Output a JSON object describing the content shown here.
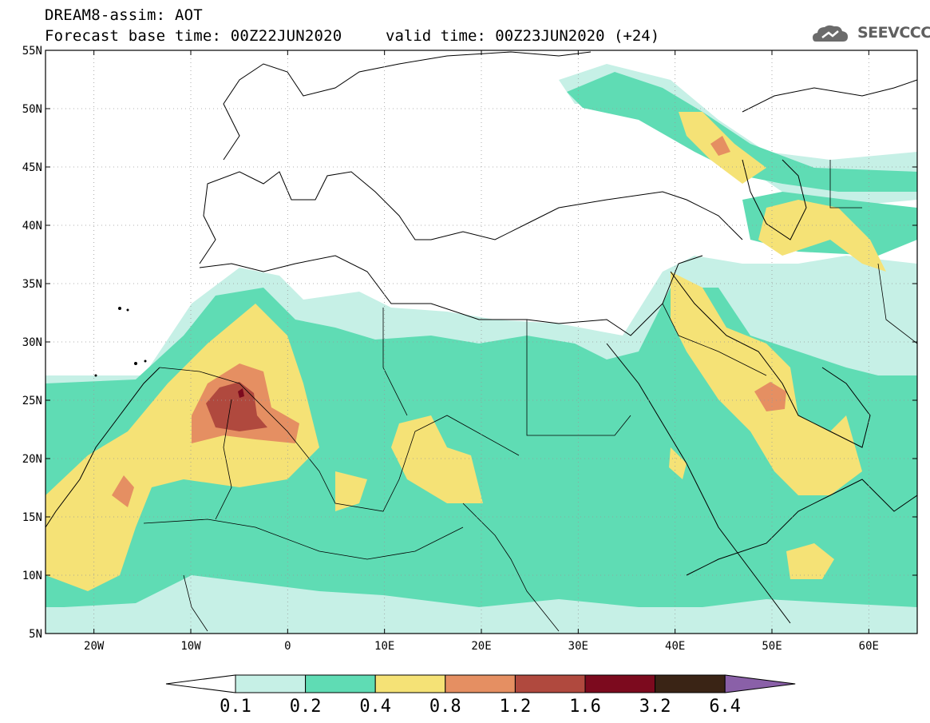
{
  "header": {
    "line1": "DREAM8-assim: AOT",
    "line2": "Forecast base time: 00Z22JUN2020",
    "valid": "valid time: 00Z23JUN2020 (+24)"
  },
  "logo": {
    "text": "SEEVCCC",
    "icon": "cloud-logo-icon"
  },
  "map": {
    "lon_range": [
      -25,
      65
    ],
    "lat_range": [
      5,
      55
    ],
    "lat_labels": [
      "55N",
      "50N",
      "45N",
      "40N",
      "35N",
      "30N",
      "25N",
      "20N",
      "15N",
      "10N",
      "5N"
    ],
    "lat_values": [
      55,
      50,
      45,
      40,
      35,
      30,
      25,
      20,
      15,
      10,
      5
    ],
    "lon_labels": [
      "20W",
      "10W",
      "0",
      "10E",
      "20E",
      "30E",
      "40E",
      "50E",
      "60E"
    ],
    "lon_values": [
      -20,
      -10,
      0,
      10,
      20,
      30,
      40,
      50,
      60
    ]
  },
  "legend": {
    "labels": [
      "0.1",
      "0.2",
      "0.4",
      "0.8",
      "1.2",
      "1.6",
      "3.2",
      "6.4"
    ],
    "colors": [
      "#c6f0e6",
      "#5fdcb4",
      "#f5e276",
      "#e58f62",
      "#b0493e",
      "#7c0a1e",
      "#3a2415",
      "#8a60a8"
    ],
    "under_color": "#ffffff"
  }
}
